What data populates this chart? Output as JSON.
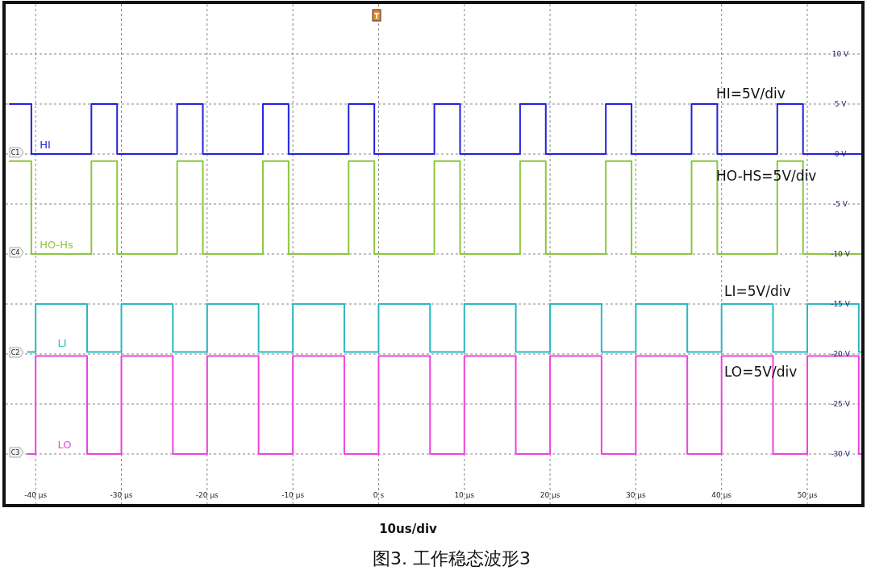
{
  "chart_data": {
    "type": "step",
    "title": "图3. 工作稳态波形3",
    "xlabel": "10us/div",
    "xlim": [
      -43.5,
      56.3
    ],
    "ylim": [
      -35,
      15
    ],
    "xticks": [
      {
        "value": -40,
        "label": "-40 µs"
      },
      {
        "value": -30,
        "label": "-30 µs"
      },
      {
        "value": -20,
        "label": "-20 µs"
      },
      {
        "value": -10,
        "label": "-10 µs"
      },
      {
        "value": 0,
        "label": "0 s"
      },
      {
        "value": 10,
        "label": "10 µs"
      },
      {
        "value": 20,
        "label": "20 µs"
      },
      {
        "value": 30,
        "label": "30 µs"
      },
      {
        "value": 40,
        "label": "40 µs"
      },
      {
        "value": 50,
        "label": "50 µs"
      }
    ],
    "yticks": [
      {
        "value": 10,
        "label": "10 V"
      },
      {
        "value": 5,
        "label": "5 V"
      },
      {
        "value": 0,
        "label": "0 V"
      },
      {
        "value": -5,
        "label": "-5 V"
      },
      {
        "value": -10,
        "label": "-10 V"
      },
      {
        "value": -15,
        "label": "-15 V"
      },
      {
        "value": -20,
        "label": "-20 V"
      },
      {
        "value": -25,
        "label": "-25 V"
      },
      {
        "value": -30,
        "label": "-30 V"
      }
    ],
    "grid": true,
    "line_style": "solid",
    "series": [
      {
        "name": "HI",
        "color": "#2222dd",
        "x": [
          -43.1,
          -40.5,
          -33.5,
          -30.5,
          -23.5,
          -20.5,
          -13.5,
          -10.5,
          -3.5,
          -0.5,
          6.5,
          9.5,
          16.5,
          19.5,
          26.5,
          29.5,
          36.5,
          39.5,
          46.5,
          49.5,
          56.3
        ],
        "values": [
          5,
          0,
          5,
          0,
          5,
          0,
          5,
          0,
          5,
          0,
          5,
          0,
          5,
          0,
          5,
          0,
          5,
          0,
          5,
          0,
          0
        ]
      },
      {
        "name": "HO-Hs",
        "color": "#8cc63f",
        "x": [
          -43.1,
          -40.5,
          -33.5,
          -30.5,
          -23.5,
          -20.5,
          -13.5,
          -10.5,
          -3.5,
          -0.5,
          6.5,
          9.5,
          16.5,
          19.5,
          26.5,
          29.5,
          36.5,
          39.5,
          46.5,
          49.5,
          56.3
        ],
        "values": [
          -0.7,
          -10,
          -0.7,
          -10,
          -0.7,
          -10,
          -0.7,
          -10,
          -0.7,
          -10,
          -0.7,
          -10,
          -0.7,
          -10,
          -0.7,
          -10,
          -0.7,
          -10,
          -0.7,
          -10,
          -10
        ]
      },
      {
        "name": "LI",
        "color": "#2cb8c2",
        "x": [
          -41,
          -40,
          -34,
          -30,
          -24,
          -20,
          -14,
          -10,
          -4,
          0,
          6,
          10,
          16,
          20,
          26,
          30,
          36,
          40,
          46,
          50,
          56,
          56.3
        ],
        "values": [
          -19.8,
          -15,
          -19.8,
          -15,
          -19.8,
          -15,
          -19.8,
          -15,
          -19.8,
          -15,
          -19.8,
          -15,
          -19.8,
          -15,
          -19.8,
          -15,
          -19.8,
          -15,
          -19.8,
          -15,
          -19.8,
          -19.8
        ]
      },
      {
        "name": "LO",
        "color": "#ee44dd",
        "x": [
          -41,
          -40,
          -34,
          -30,
          -24,
          -20,
          -14,
          -10,
          -4,
          0,
          6,
          10,
          16,
          20,
          26,
          30,
          36,
          40,
          46,
          50,
          56,
          56.3
        ],
        "values": [
          -30,
          -20.2,
          -30,
          -20.2,
          -30,
          -20.2,
          -30,
          -20.2,
          -30,
          -20.2,
          -30,
          -20.2,
          -30,
          -20.2,
          -30,
          -20.2,
          -30,
          -20.2,
          -30,
          -20.2,
          -30,
          -30
        ]
      }
    ],
    "annotations": [
      "HI=5V/div",
      "HO-HS=5V/div",
      "LI=5V/div",
      "LO=5V/div",
      "C1",
      "C4",
      "C2",
      "C3",
      "T"
    ]
  }
}
